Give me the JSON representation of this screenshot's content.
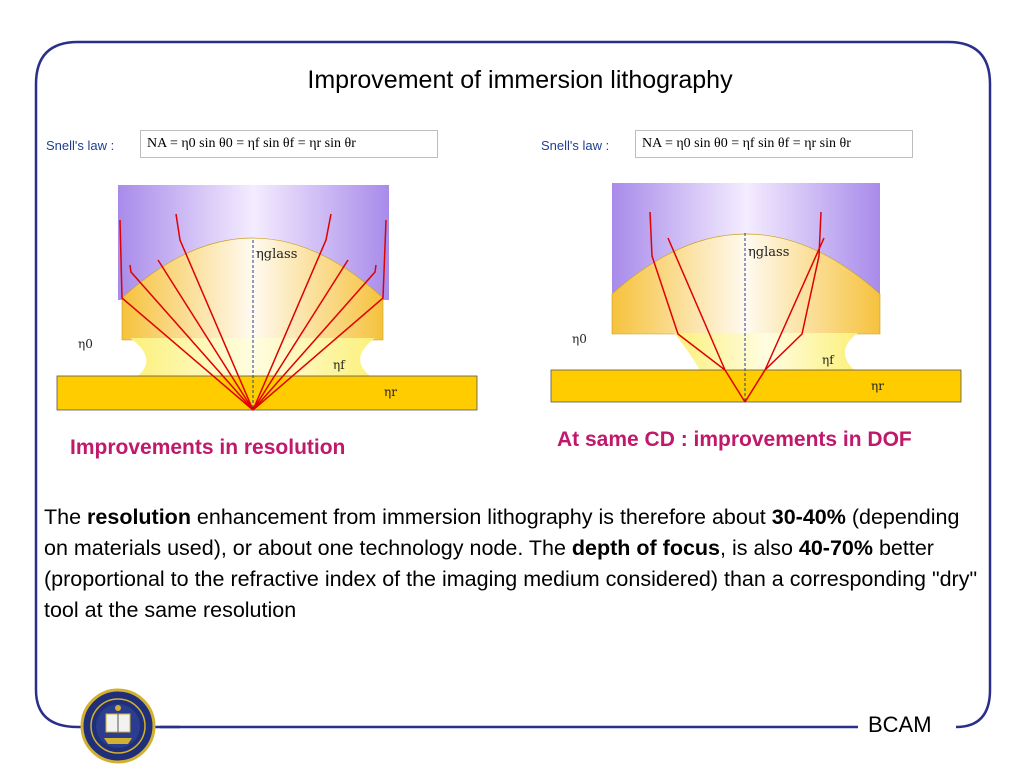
{
  "slide": {
    "title": "Improvement of immersion lithography",
    "footer_label": "BCAM"
  },
  "left_panel": {
    "snell_label": "Snell's law :",
    "formula": "NA = η0 sin θ0 = ηf sin θf = ηr sin θr",
    "label_glass": "ηglass",
    "label_0": "η0",
    "label_f": "ηf",
    "label_r": "ηr",
    "caption": "Improvements in resolution"
  },
  "right_panel": {
    "snell_label": "Snell's law :",
    "formula": "NA = η0 sin θ0 = ηf sin θf = ηr sin θr",
    "label_glass": "ηglass",
    "label_0": "η0",
    "label_f": "ηf",
    "label_r": "ηr",
    "caption": "At same CD : improvements in DOF"
  },
  "paragraph": {
    "t1": "The ",
    "b1": "resolution",
    "t2": " enhancement from immersion lithography is therefore about ",
    "b2": "30-40%",
    "t3": " (depending on materials used), or about one technology node. The ",
    "b3": "depth of focus",
    "t4": ", is also ",
    "b4": "40-70%",
    "t5": " better (proportional to the refractive index of the imaging medium considered) than a corresponding \"dry\" tool at the same resolution"
  },
  "colors": {
    "frame": "#2b2f8c",
    "caption": "#c0186a",
    "lens_purple": "#b89cf0",
    "lens_yellow": "#f6c84a",
    "fluid_yellow": "#fdf6a0",
    "wafer": "#ffcc00",
    "ray": "#e00000",
    "axis": "#1f3f8f"
  },
  "icons": {
    "seal": "university-seal-icon"
  }
}
